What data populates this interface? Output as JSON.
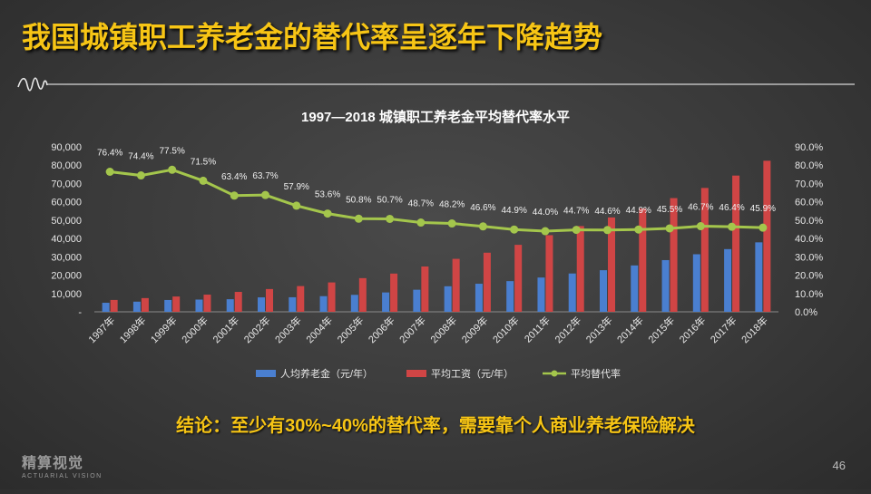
{
  "slide": {
    "title": "我国城镇职工养老金的替代率呈逐年下降趋势",
    "conclusion": "结论：至少有30%~40%的替代率，需要靠个人商业养老保险解决",
    "logo_main": "精算视觉",
    "logo_sub": "ACTUARIAL VISION",
    "page_number": "46"
  },
  "chart_data": {
    "type": "bar",
    "title": "1997—2018 城镇职工养老金平均替代率水平",
    "categories": [
      "1997年",
      "1998年",
      "1999年",
      "2000年",
      "2001年",
      "2002年",
      "2003年",
      "2004年",
      "2005年",
      "2006年",
      "2007年",
      "2008年",
      "2009年",
      "2010年",
      "2011年",
      "2012年",
      "2013年",
      "2014年",
      "2015年",
      "2016年",
      "2017年",
      "2018年"
    ],
    "series": [
      {
        "name": "人均养老金（元/年）",
        "type": "bar",
        "axis": "left",
        "color": "#4a7fd0",
        "values": [
          4932,
          5541,
          6451,
          6674,
          6867,
          7877,
          7940,
          8536,
          9251,
          10564,
          12041,
          13933,
          15317,
          16741,
          18700,
          20900,
          22700,
          25300,
          28200,
          31400,
          34200,
          37900
        ]
      },
      {
        "name": "平均工资（元/年）",
        "type": "bar",
        "axis": "left",
        "color": "#d04545",
        "values": [
          6470,
          7479,
          8346,
          9371,
          10870,
          12422,
          14040,
          16024,
          18364,
          20856,
          24721,
          28898,
          32244,
          36539,
          41799,
          46769,
          51483,
          56360,
          62029,
          67569,
          74318,
          82413
        ]
      },
      {
        "name": "平均替代率",
        "type": "line",
        "axis": "right",
        "color": "#a4c64c",
        "values": [
          76.4,
          74.4,
          77.5,
          71.5,
          63.4,
          63.7,
          57.9,
          53.6,
          50.8,
          50.7,
          48.7,
          48.2,
          46.6,
          44.9,
          44.0,
          44.7,
          44.6,
          44.9,
          45.5,
          46.7,
          46.4,
          45.9
        ],
        "labels": [
          "76.4%",
          "74.4%",
          "77.5%",
          "71.5%",
          "63.4%",
          "63.7%",
          "57.9%",
          "53.6%",
          "50.8%",
          "50.7%",
          "48.7%",
          "48.2%",
          "46.6%",
          "44.9%",
          "44.0%",
          "44.7%",
          "44.6%",
          "44.9%",
          "45.5%",
          "46.7%",
          "46.4%",
          "45.9%"
        ]
      }
    ],
    "left_axis": {
      "min": 0,
      "max": 90000,
      "ticks": [
        "-",
        "10,000",
        "20,000",
        "30,000",
        "40,000",
        "50,000",
        "60,000",
        "70,000",
        "80,000",
        "90,000"
      ]
    },
    "right_axis": {
      "min": 0,
      "max": 90,
      "ticks": [
        "0.0%",
        "10.0%",
        "20.0%",
        "30.0%",
        "40.0%",
        "50.0%",
        "60.0%",
        "70.0%",
        "80.0%",
        "90.0%"
      ]
    },
    "grid": false,
    "legend": "bottom"
  }
}
